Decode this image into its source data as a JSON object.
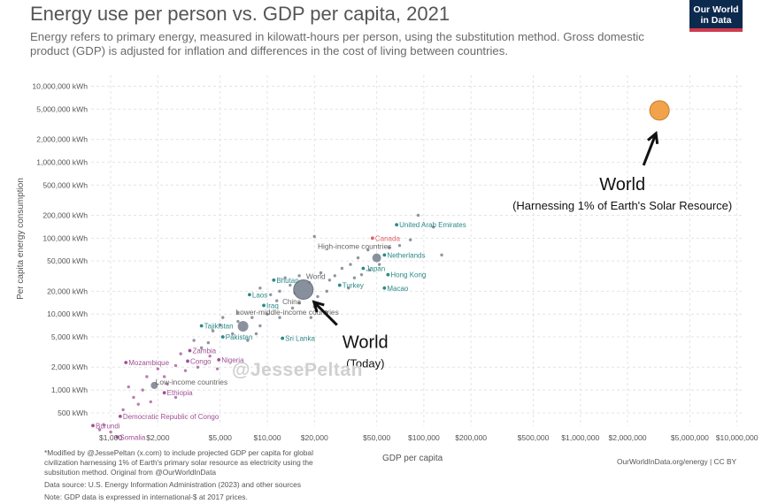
{
  "header": {
    "title": "Energy use per person vs. GDP per capita, 2021",
    "subtitle": "Energy refers to primary energy, measured in kilowatt-hours per person, using the substitution method. Gross domestic product (GDP) is adjusted for inflation and differences in the cost of living between countries.",
    "logo_line1": "Our World",
    "logo_line2": "in Data"
  },
  "watermark": "@JessePeltan",
  "footer": {
    "note": "*Modified by @JessePeltan (x.com) to include projected GDP per capita for global civilization harnessing 1% of Earth's primary solar resource as electricity using the subsitution method. Original from @OurWorldInData",
    "source": "Data source: U.S. Energy Information Administration (2023) and other sources",
    "gdp_note": "Note: GDP data is expressed in international-$ at 2017 prices.",
    "credit": "OurWorldInData.org/energy | CC BY"
  },
  "colors": {
    "high_income": "#2b8a85",
    "upper_middle": "#2b8a85",
    "low_income": "#a05195",
    "canada_label": "#e06070",
    "world_point": "#7d8593",
    "solar_point": "#f2a24a",
    "solar_stroke": "#c67d2a",
    "group_point": "#6b7280"
  },
  "chart_data": {
    "type": "scatter",
    "title": "Energy use per person vs. GDP per capita, 2021",
    "xlabel": "GDP per capita",
    "ylabel": "Per capita energy consumption",
    "x_scale": "log",
    "y_scale": "log",
    "xlim": [
      750,
      11000000
    ],
    "ylim": [
      300,
      14000000
    ],
    "grid": true,
    "x_ticks": [
      {
        "value": 1000,
        "label": "$1,000"
      },
      {
        "value": 2000,
        "label": "$2,000"
      },
      {
        "value": 5000,
        "label": "$5,000"
      },
      {
        "value": 10000,
        "label": "$10,000"
      },
      {
        "value": 20000,
        "label": "$20,000"
      },
      {
        "value": 50000,
        "label": "$50,000"
      },
      {
        "value": 100000,
        "label": "$100,000"
      },
      {
        "value": 200000,
        "label": "$200,000"
      },
      {
        "value": 500000,
        "label": "$500,000"
      },
      {
        "value": 1000000,
        "label": "$1,000,000"
      },
      {
        "value": 2000000,
        "label": "$2,000,000"
      },
      {
        "value": 5000000,
        "label": "$5,000,000"
      },
      {
        "value": 10000000,
        "label": "$10,000,000"
      }
    ],
    "y_ticks": [
      {
        "value": 500,
        "label": "500 kWh"
      },
      {
        "value": 1000,
        "label": "1,000 kWh"
      },
      {
        "value": 2000,
        "label": "2,000 kWh"
      },
      {
        "value": 5000,
        "label": "5,000 kWh"
      },
      {
        "value": 10000,
        "label": "10,000 kWh"
      },
      {
        "value": 20000,
        "label": "20,000 kWh"
      },
      {
        "value": 50000,
        "label": "50,000 kWh"
      },
      {
        "value": 100000,
        "label": "100,000 kWh"
      },
      {
        "value": 200000,
        "label": "200,000 kWh"
      },
      {
        "value": 500000,
        "label": "500,000 kWh"
      },
      {
        "value": 1000000,
        "label": "1,000,000 kWh"
      },
      {
        "value": 2000000,
        "label": "2,000,000 kWh"
      },
      {
        "value": 5000000,
        "label": "5,000,000 kWh"
      },
      {
        "value": 10000000,
        "label": "10,000,000 kWh"
      }
    ],
    "labeled_points": [
      {
        "label": "United Arab Emirates",
        "x": 67000,
        "y": 150000,
        "group": "high"
      },
      {
        "label": "Canada",
        "x": 47000,
        "y": 100000,
        "group": "canada"
      },
      {
        "label": "Netherlands",
        "x": 56000,
        "y": 60000,
        "group": "high"
      },
      {
        "label": "Japan",
        "x": 41000,
        "y": 40000,
        "group": "high"
      },
      {
        "label": "Hong Kong",
        "x": 59000,
        "y": 33000,
        "group": "high"
      },
      {
        "label": "Turkey",
        "x": 29000,
        "y": 24000,
        "group": "high"
      },
      {
        "label": "Macao",
        "x": 56000,
        "y": 22000,
        "group": "high"
      },
      {
        "label": "Bhutan",
        "x": 11000,
        "y": 28000,
        "group": "upper"
      },
      {
        "label": "Laos",
        "x": 7700,
        "y": 18000,
        "group": "upper"
      },
      {
        "label": "Iraq",
        "x": 9500,
        "y": 13000,
        "group": "upper"
      },
      {
        "label": "Tajikistan",
        "x": 3800,
        "y": 7000,
        "group": "upper"
      },
      {
        "label": "Pakistan",
        "x": 5200,
        "y": 5000,
        "group": "upper"
      },
      {
        "label": "Sri Lanka",
        "x": 12500,
        "y": 4800,
        "group": "upper"
      },
      {
        "label": "Zambia",
        "x": 3200,
        "y": 3300,
        "group": "low"
      },
      {
        "label": "Mozambique",
        "x": 1250,
        "y": 2300,
        "group": "low"
      },
      {
        "label": "Congo",
        "x": 3100,
        "y": 2400,
        "group": "low"
      },
      {
        "label": "Nigeria",
        "x": 4900,
        "y": 2500,
        "group": "low"
      },
      {
        "label": "Ethiopia",
        "x": 2200,
        "y": 920,
        "group": "low"
      },
      {
        "label": "Democratic Republic of Congo",
        "x": 1150,
        "y": 450,
        "group": "low"
      },
      {
        "label": "Burundi",
        "x": 770,
        "y": 340,
        "group": "low"
      },
      {
        "label": "Somalia",
        "x": 1100,
        "y": 240,
        "group": "low"
      }
    ],
    "group_points": [
      {
        "label": "High-income countries",
        "x": 50000,
        "y": 55000
      },
      {
        "label": "World",
        "x": 17000,
        "y": 21000
      },
      {
        "label": "Lower-middle-income countries",
        "x": 7000,
        "y": 6900
      },
      {
        "label": "Low-income countries",
        "x": 1900,
        "y": 1150
      }
    ],
    "annotations": [
      {
        "label": "World",
        "sublabel": "(Today)",
        "x": 17000,
        "y": 21000
      },
      {
        "label": "World",
        "sublabel": "(Harnessing 1% of Earth's Solar Resource)",
        "x": 3200000,
        "y": 4800000
      }
    ],
    "extra_labels": [
      "China"
    ],
    "scatter_points": [
      {
        "x": 115000,
        "y": 140000
      },
      {
        "x": 130000,
        "y": 60000
      },
      {
        "x": 92000,
        "y": 200000
      },
      {
        "x": 82000,
        "y": 95000
      },
      {
        "x": 70000,
        "y": 80000
      },
      {
        "x": 60000,
        "y": 75000
      },
      {
        "x": 44000,
        "y": 70000
      },
      {
        "x": 38000,
        "y": 55000
      },
      {
        "x": 34000,
        "y": 45000
      },
      {
        "x": 45000,
        "y": 38000
      },
      {
        "x": 30000,
        "y": 40000
      },
      {
        "x": 27000,
        "y": 32000
      },
      {
        "x": 25000,
        "y": 28000
      },
      {
        "x": 22000,
        "y": 35000
      },
      {
        "x": 20000,
        "y": 105000
      },
      {
        "x": 36000,
        "y": 30000
      },
      {
        "x": 40000,
        "y": 33000
      },
      {
        "x": 52000,
        "y": 45000
      },
      {
        "x": 33000,
        "y": 22000
      },
      {
        "x": 24000,
        "y": 20000
      },
      {
        "x": 21000,
        "y": 17000
      },
      {
        "x": 18500,
        "y": 26000
      },
      {
        "x": 15000,
        "y": 19000
      },
      {
        "x": 14000,
        "y": 24000
      },
      {
        "x": 13000,
        "y": 30000
      },
      {
        "x": 16000,
        "y": 32000
      },
      {
        "x": 12000,
        "y": 20000
      },
      {
        "x": 10500,
        "y": 18000
      },
      {
        "x": 9000,
        "y": 22000
      },
      {
        "x": 11500,
        "y": 15000
      },
      {
        "x": 14500,
        "y": 12000
      },
      {
        "x": 16000,
        "y": 14000
      },
      {
        "x": 20000,
        "y": 12500
      },
      {
        "x": 24000,
        "y": 10500
      },
      {
        "x": 19000,
        "y": 9000
      },
      {
        "x": 12000,
        "y": 9000
      },
      {
        "x": 10000,
        "y": 10000
      },
      {
        "x": 8000,
        "y": 9000
      },
      {
        "x": 9000,
        "y": 7000
      },
      {
        "x": 8500,
        "y": 5500
      },
      {
        "x": 7500,
        "y": 4500
      },
      {
        "x": 6000,
        "y": 5500
      },
      {
        "x": 6500,
        "y": 8000
      },
      {
        "x": 5000,
        "y": 7200
      },
      {
        "x": 4500,
        "y": 6000
      },
      {
        "x": 5200,
        "y": 9000
      },
      {
        "x": 6500,
        "y": 10500
      },
      {
        "x": 4200,
        "y": 4200
      },
      {
        "x": 3800,
        "y": 3600
      },
      {
        "x": 3400,
        "y": 4500
      },
      {
        "x": 2800,
        "y": 3000
      },
      {
        "x": 2600,
        "y": 2100
      },
      {
        "x": 3000,
        "y": 1800
      },
      {
        "x": 3600,
        "y": 2000
      },
      {
        "x": 4300,
        "y": 2800
      },
      {
        "x": 4800,
        "y": 1900
      },
      {
        "x": 2200,
        "y": 1500
      },
      {
        "x": 2000,
        "y": 1900
      },
      {
        "x": 1700,
        "y": 1500
      },
      {
        "x": 1600,
        "y": 1000
      },
      {
        "x": 1400,
        "y": 800
      },
      {
        "x": 1800,
        "y": 700
      },
      {
        "x": 2300,
        "y": 1200
      },
      {
        "x": 2600,
        "y": 800
      },
      {
        "x": 1200,
        "y": 550
      },
      {
        "x": 1300,
        "y": 1100
      },
      {
        "x": 1500,
        "y": 650
      },
      {
        "x": 900,
        "y": 350
      },
      {
        "x": 850,
        "y": 300
      },
      {
        "x": 1000,
        "y": 280
      }
    ]
  }
}
